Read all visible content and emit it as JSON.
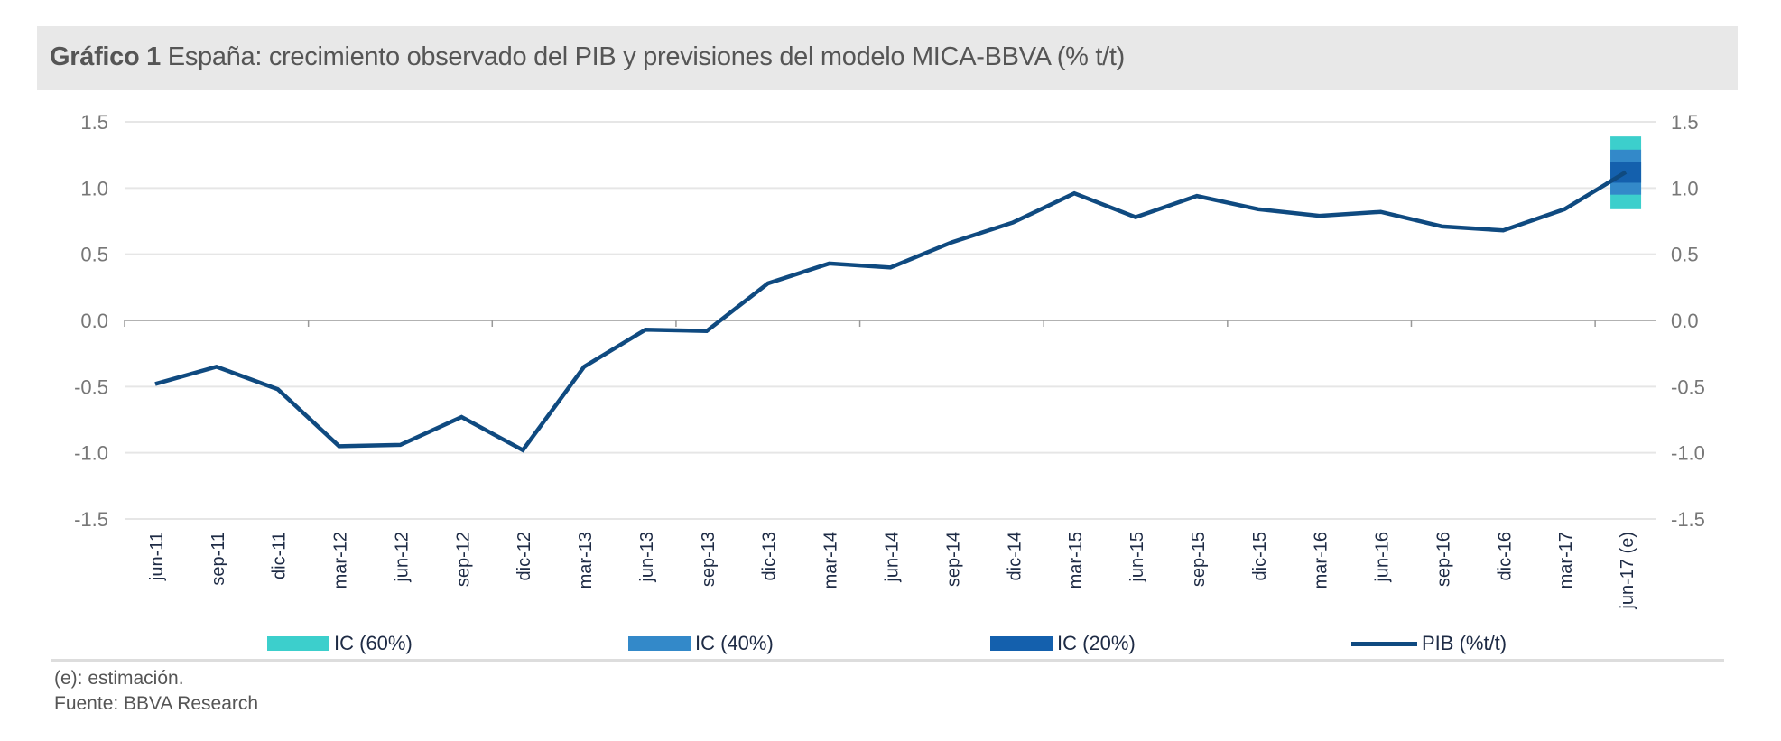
{
  "title": {
    "prefix": "Gráfico 1",
    "text": "España: crecimiento observado del PIB y previsiones del modelo MICA-BBVA (% t/t)"
  },
  "chart_data": {
    "type": "line",
    "categories": [
      "jun-11",
      "sep-11",
      "dic-11",
      "mar-12",
      "jun-12",
      "sep-12",
      "dic-12",
      "mar-13",
      "jun-13",
      "sep-13",
      "dic-13",
      "mar-14",
      "jun-14",
      "sep-14",
      "dic-14",
      "mar-15",
      "jun-15",
      "sep-15",
      "dic-15",
      "mar-16",
      "jun-16",
      "sep-16",
      "dic-16",
      "mar-17",
      "jun-17 (e)"
    ],
    "series": [
      {
        "name": "PIB (%t/t)",
        "color": "#0f4a80",
        "values": [
          -0.48,
          -0.35,
          -0.52,
          -0.95,
          -0.94,
          -0.73,
          -0.98,
          -0.35,
          -0.07,
          -0.08,
          0.28,
          0.43,
          0.4,
          0.59,
          0.74,
          0.96,
          0.78,
          0.94,
          0.84,
          0.79,
          0.82,
          0.71,
          0.68,
          0.84,
          1.12
        ]
      }
    ],
    "intervals": [
      {
        "name": "IC (60%)",
        "color": "#3ccfcc",
        "category": "jun-17 (e)",
        "low": 0.84,
        "high": 1.39
      },
      {
        "name": "IC (40%)",
        "color": "#3389c9",
        "category": "jun-17 (e)",
        "low": 0.95,
        "high": 1.29
      },
      {
        "name": "IC (20%)",
        "color": "#1460ad",
        "category": "jun-17 (e)",
        "low": 1.04,
        "high": 1.2
      }
    ],
    "ylim": [
      -1.5,
      1.5
    ],
    "yticks": [
      "1.5",
      "1.0",
      "0.5",
      "0.0",
      "-0.5",
      "-1.0",
      "-1.5"
    ],
    "ytick_values": [
      1.5,
      1.0,
      0.5,
      0.0,
      -0.5,
      -1.0,
      -1.5
    ],
    "secondary_y_axis": true,
    "grid": true,
    "legend_placement": "bottom"
  },
  "footnotes": [
    "(e): estimación.",
    "Fuente: BBVA Research"
  ]
}
